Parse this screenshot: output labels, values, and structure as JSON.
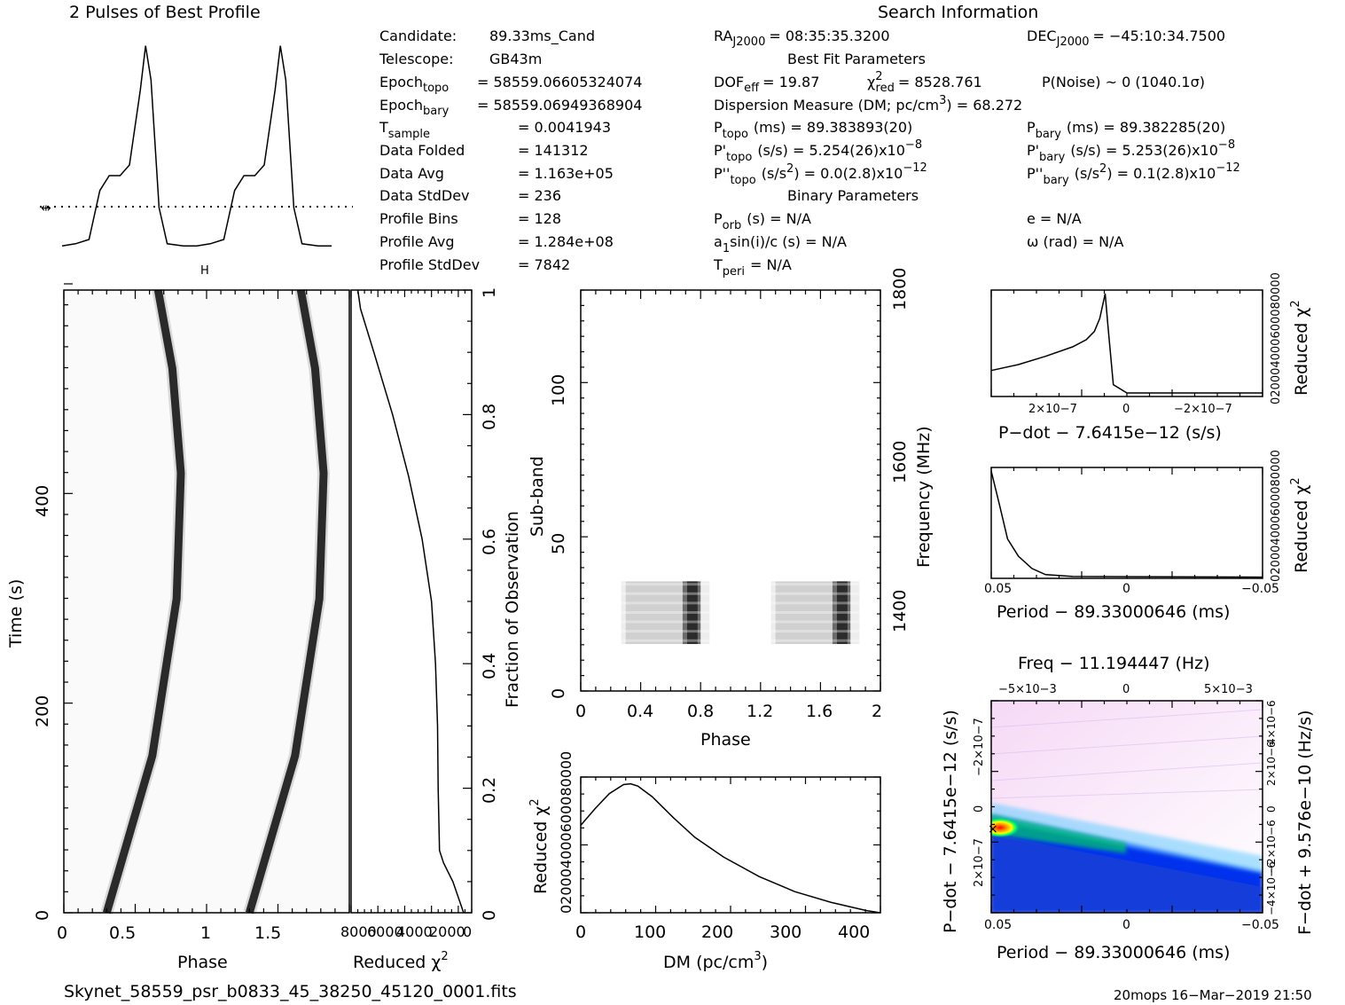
{
  "title_profile": "2 Pulses of Best Profile",
  "title_search": "Search Information",
  "candidate": {
    "cand_label": "Candidate:",
    "cand_value": "89.33ms_Cand",
    "tel_label": "Telescope:",
    "tel_value": "GB43m",
    "epoch_topo_label": "Epoch",
    "epoch_topo_sub": "topo",
    "epoch_topo_value": "= 58559.06605324074",
    "epoch_bary_label": "Epoch",
    "epoch_bary_sub": "bary",
    "epoch_bary_value": "= 58559.06949368904",
    "tsample_label": "T",
    "tsample_sub": "sample",
    "tsample_value": "=   0.0041943",
    "folded_label": "Data Folded",
    "folded_value": "=   141312",
    "avg_label": "Data Avg",
    "avg_value": "=   1.163e+05",
    "std_label": "Data StdDev",
    "std_value": "=   236",
    "bins_label": "Profile Bins",
    "bins_value": "=   128",
    "pavg_label": "Profile Avg",
    "pavg_value": "=   1.284e+08",
    "pstd_label": "Profile StdDev",
    "pstd_value": "=   7842"
  },
  "search": {
    "ra_label": "RA",
    "ra_sub": "J2000",
    "ra_value": "= 08:35:35.3200",
    "dec_label": "DEC",
    "dec_sub": "J2000",
    "dec_value": "= −45:10:34.7500",
    "best_fit_title": "Best Fit Parameters",
    "dof_label": "DOF",
    "dof_sub": "eff",
    "dof_value": "= 19.87",
    "chi_label": "χ",
    "chi_sup": "2",
    "chi_sub": "red",
    "chi_value": "= 8528.761",
    "pnoise": "P(Noise) ~ 0    (1040.1σ)",
    "dm_line_a": "Dispersion Measure (DM; pc/cm",
    "dm_line_sup": "3",
    "dm_line_b": ") = 68.272",
    "ptopo_label": "P",
    "ptopo_sub": "topo",
    "ptopo_value": "(ms)  =  89.383893(20)",
    "pbary_label": "P",
    "pbary_sub": "bary",
    "pbary_value": "(ms)  =  89.382285(20)",
    "pdtopo_label": "P'",
    "pdtopo_sub": "topo",
    "pdtopo_value": "(s/s)  =   5.254(26)x10",
    "pdtopo_exp": "−8",
    "pdbary_label": "P'",
    "pdbary_sub": "bary",
    "pdbary_value": "(s/s)  =   5.253(26)x10",
    "pdbary_exp": "−8",
    "pddtopo_label": "P''",
    "pddtopo_sub": "topo",
    "pddtopo_value_a": "(s/s",
    "pddtopo_value_sup": "2",
    "pddtopo_value_b": ") = 0.0(2.8)x10",
    "pddtopo_exp": "−12",
    "pddbary_label": "P''",
    "pddbary_sub": "bary",
    "pddbary_value_a": "(s/s",
    "pddbary_value_sup": "2",
    "pddbary_value_b": ")  =   0.1(2.8)x10",
    "pddbary_exp": "−12",
    "binary_title": "Binary Parameters",
    "porb_label": "P",
    "porb_sub": "orb",
    "porb_value": "(s) = N/A",
    "e_text": "e = N/A",
    "a1_label": "a",
    "a1_sub": "1",
    "a1_value": "sin(i)/c (s) = N/A",
    "omega_text": "ω (rad) = N/A",
    "tperi_label": "T",
    "tperi_sub": "peri",
    "tperi_value": "= N/A"
  },
  "footer": {
    "filename": "Skynet_58559_psr_b0833_45_38250_45120_0001.fits",
    "stamp": "20mops 16−Mar−2019 21:50"
  },
  "chart_data": [
    {
      "id": "profile",
      "type": "line",
      "title": "2 Pulses of Best Profile",
      "x_range": [
        0,
        2
      ],
      "mean_marker_label": "H",
      "mean_level": 0.37,
      "profile_shape": [
        [
          0.0,
          0.02
        ],
        [
          0.1,
          0.03
        ],
        [
          0.2,
          0.05
        ],
        [
          0.28,
          0.28
        ],
        [
          0.35,
          0.35
        ],
        [
          0.43,
          0.35
        ],
        [
          0.5,
          0.4
        ],
        [
          0.58,
          0.75
        ],
        [
          0.62,
          0.96
        ],
        [
          0.66,
          0.8
        ],
        [
          0.72,
          0.2
        ],
        [
          0.78,
          0.03
        ],
        [
          0.9,
          0.02
        ],
        [
          1.0,
          0.02
        ]
      ]
    },
    {
      "id": "time_phase",
      "type": "heatmap",
      "xlabel": "Phase",
      "ylabel": "Time (s)",
      "x_ticks": [
        "0",
        "0.5",
        "1",
        "1.5"
      ],
      "x_range": [
        0,
        2
      ],
      "y_ticks": [
        "0",
        "200",
        "400"
      ],
      "y_range": [
        0,
        595
      ],
      "tracks": [
        {
          "phase_at_t": [
            [
              0,
              0.3
            ],
            [
              150,
              0.62
            ],
            [
              300,
              0.79
            ],
            [
              420,
              0.82
            ],
            [
              520,
              0.76
            ],
            [
              595,
              0.66
            ]
          ]
        },
        {
          "phase_at_t": [
            [
              0,
              1.3
            ],
            [
              150,
              1.62
            ],
            [
              300,
              1.79
            ],
            [
              420,
              1.82
            ],
            [
              520,
              1.76
            ],
            [
              595,
              1.66
            ]
          ]
        }
      ]
    },
    {
      "id": "chi_vs_time",
      "type": "line",
      "xlabel": "Reduced χ",
      "xlabel_sup": "2",
      "x_ticks": [
        "8000",
        "6000",
        "4000",
        "2000",
        "0"
      ],
      "x_range": [
        9000,
        0
      ],
      "right_axis_label": "Fraction of Observation",
      "right_ticks": [
        "0",
        "0.2",
        "0.4",
        "0.6",
        "0.8",
        "1"
      ],
      "values": [
        [
          0,
          600
        ],
        [
          0.05,
          1400
        ],
        [
          0.08,
          2100
        ],
        [
          0.1,
          2400
        ],
        [
          0.2,
          2500
        ],
        [
          0.3,
          2550
        ],
        [
          0.4,
          2700
        ],
        [
          0.5,
          3000
        ],
        [
          0.6,
          3700
        ],
        [
          0.7,
          4700
        ],
        [
          0.8,
          5900
        ],
        [
          0.9,
          7300
        ],
        [
          0.97,
          8300
        ],
        [
          1.0,
          8500
        ]
      ]
    },
    {
      "id": "subband_phase",
      "type": "heatmap",
      "xlabel": "Phase",
      "ylabel": "Sub-band",
      "x_ticks": [
        "0",
        "0.4",
        "0.8",
        "1.2",
        "1.6",
        "2"
      ],
      "x_range": [
        0,
        2
      ],
      "y_ticks": [
        "0",
        "50",
        "100"
      ],
      "y_range": [
        0,
        128
      ],
      "right_axis_label": "Frequency (MHz)",
      "right_ticks": [
        "1400",
        "1600",
        "1800"
      ],
      "active_subbands": [
        15,
        35
      ]
    },
    {
      "id": "chi_vs_dm",
      "type": "line",
      "xlabel": "DM (pc/cm",
      "xlabel_sup": "3",
      "xlabel_end": ")",
      "ylabel": "Reduced χ",
      "ylabel_sup": "2",
      "x_ticks": [
        "0",
        "100",
        "200",
        "300",
        "400"
      ],
      "x_range": [
        0,
        420
      ],
      "y_tick_text": "020004000600080000",
      "values": [
        [
          0,
          5800
        ],
        [
          20,
          6900
        ],
        [
          40,
          7900
        ],
        [
          60,
          8500
        ],
        [
          70,
          8550
        ],
        [
          80,
          8400
        ],
        [
          100,
          7700
        ],
        [
          130,
          6300
        ],
        [
          160,
          5000
        ],
        [
          200,
          3700
        ],
        [
          250,
          2400
        ],
        [
          300,
          1400
        ],
        [
          350,
          700
        ],
        [
          400,
          150
        ],
        [
          420,
          0
        ]
      ]
    },
    {
      "id": "chi_vs_pdot",
      "type": "line",
      "xlabel": "P−dot − 7.6415e−12 (s/s)",
      "ylabel": "Reduced χ",
      "ylabel_sup": "2",
      "x_ticks": [
        "2×10−7",
        "0",
        "−2×10−7"
      ],
      "y_tick_text": "020004000600080000",
      "values": [
        [
          0,
          2200
        ],
        [
          0.1,
          2700
        ],
        [
          0.2,
          3400
        ],
        [
          0.3,
          4200
        ],
        [
          0.35,
          4800
        ],
        [
          0.38,
          5500
        ],
        [
          0.4,
          6600
        ],
        [
          0.42,
          8700
        ],
        [
          0.43,
          6000
        ],
        [
          0.45,
          1000
        ],
        [
          0.5,
          300
        ],
        [
          1.0,
          300
        ]
      ]
    },
    {
      "id": "chi_vs_period",
      "type": "line",
      "xlabel": "Period − 89.33000646 (ms)",
      "ylabel": "Reduced χ",
      "ylabel_sup": "2",
      "x_ticks": [
        "0.05",
        "0",
        "−0.05"
      ],
      "y_tick_text": "020004000600080000",
      "values": [
        [
          0,
          8700
        ],
        [
          0.03,
          6000
        ],
        [
          0.06,
          3200
        ],
        [
          0.1,
          1800
        ],
        [
          0.15,
          800
        ],
        [
          0.2,
          300
        ],
        [
          0.3,
          150
        ],
        [
          1.0,
          100
        ]
      ]
    },
    {
      "id": "p_pdot_plane",
      "type": "heatmap",
      "title": "Freq − 11.194447 (Hz)",
      "xlabel": "Period − 89.33000646 (ms)",
      "ylabel": "P−dot − 7.6415e−12 (s/s)",
      "right_label": "F−dot + 9.576e−10 (Hz/s)",
      "x_ticks": [
        "0.05",
        "0",
        "−0.05"
      ],
      "top_ticks": [
        "−5×10−3",
        "0",
        "5×10−3"
      ],
      "y_ticks": [
        "−2×10−7",
        "0",
        "2×10−7"
      ],
      "right_ticks": [
        "4×10−6",
        "2×10−6",
        "0",
        "−2×10−6",
        "−4×10−6"
      ]
    }
  ]
}
